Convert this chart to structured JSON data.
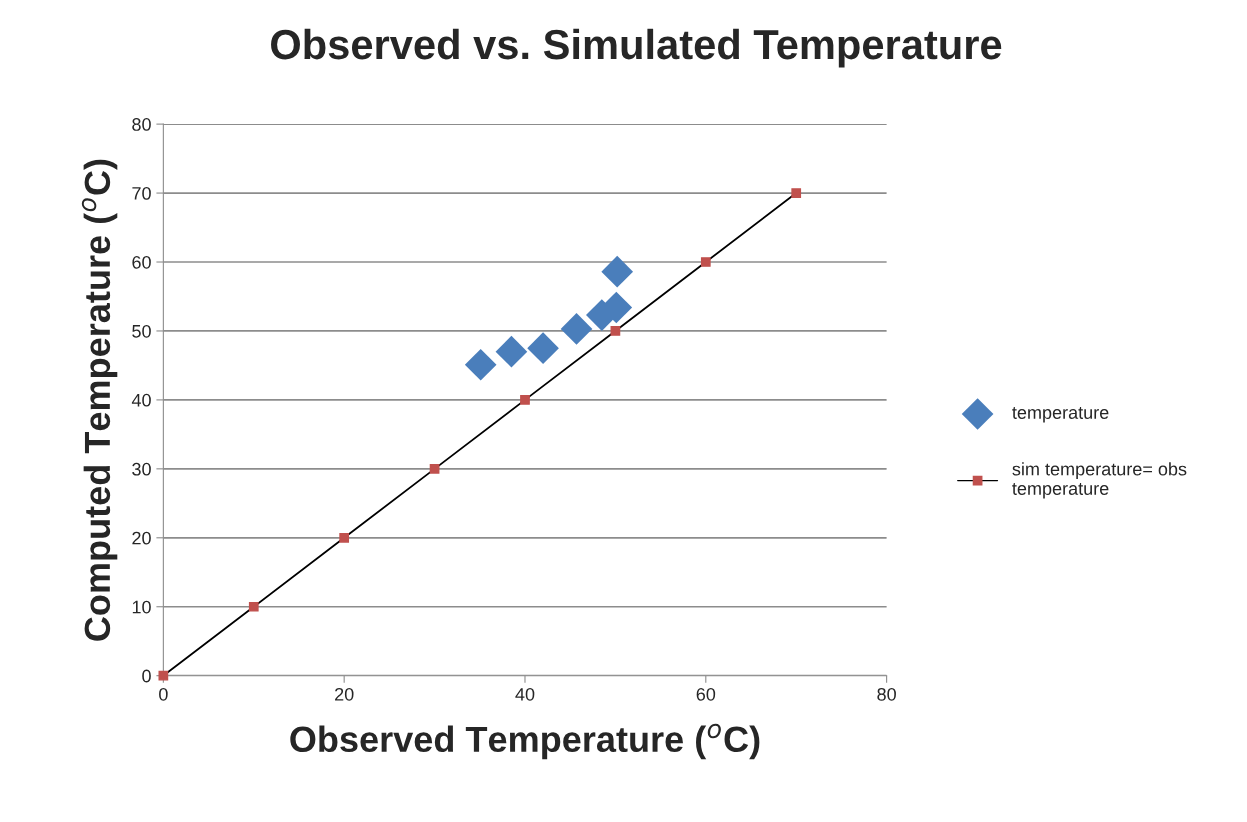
{
  "chart_data": {
    "type": "scatter",
    "title": "Observed vs. Simulated Temperature",
    "xlabel": "Observed Temperature ($^{o}$C)",
    "ylabel": "Computed Temperature ($^{o}$C)",
    "series": [
      {
        "name": "temperature",
        "color": "#4a7ebb",
        "marker": "diamond",
        "x": [
          35.1,
          38.5,
          42.0,
          45.7,
          48.5,
          50.1,
          50.2
        ],
        "values": [
          45.1,
          47.0,
          47.5,
          50.3,
          52.3,
          53.4,
          58.6
        ]
      },
      {
        "name": "sim temperature= obs temperature",
        "type": "line",
        "color": "#c0504d",
        "marker": "square",
        "x": [
          0,
          10,
          20,
          30,
          40,
          50,
          60,
          70
        ],
        "values": [
          0,
          10,
          20,
          30,
          40,
          50,
          60,
          70
        ]
      }
    ],
    "xlim": [
      0,
      80
    ],
    "xticks": [
      0,
      20,
      40,
      60,
      80
    ],
    "ylim": [
      0,
      80
    ],
    "yticks": [
      0,
      10,
      20,
      30,
      40,
      50,
      60,
      70,
      80
    ],
    "grid": "y",
    "legend": "right"
  }
}
